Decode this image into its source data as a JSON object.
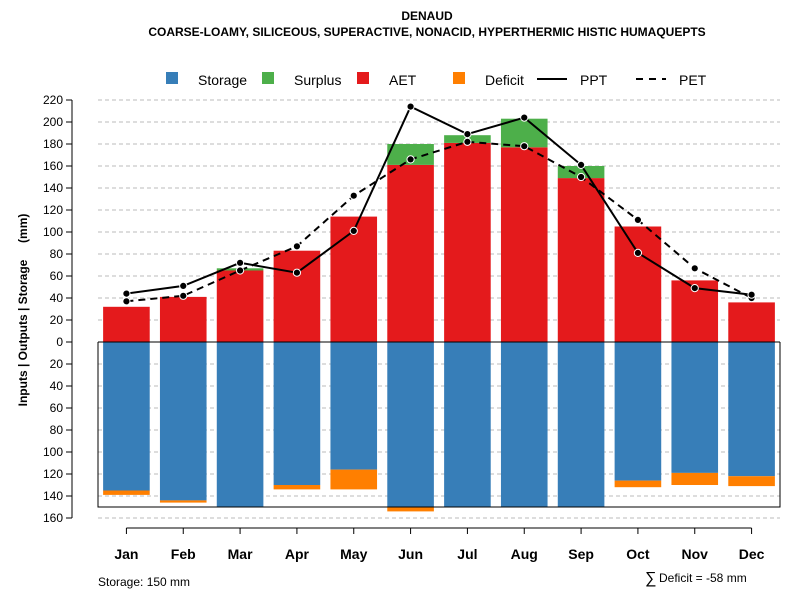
{
  "chart_data": {
    "type": "bar",
    "title": "DENAUD",
    "subtitle": "COARSE-LOAMY, SILICEOUS, SUPERACTIVE, NONACID, HYPERTHERMIC HISTIC HUMAQUEPTS",
    "ylabel": "Inputs | Outputs | Storage     (mm)",
    "xlabel": "",
    "ylim": [
      -160,
      220
    ],
    "yticks": [
      220,
      200,
      180,
      160,
      140,
      120,
      100,
      80,
      60,
      40,
      20,
      0,
      -20,
      -40,
      -60,
      -80,
      -100,
      -120,
      -140,
      -160
    ],
    "grid": true,
    "legend_position": "top",
    "categories": [
      "Jan",
      "Feb",
      "Mar",
      "Apr",
      "May",
      "Jun",
      "Jul",
      "Aug",
      "Sep",
      "Oct",
      "Nov",
      "Dec"
    ],
    "series": [
      {
        "name": "AET",
        "kind": "bar",
        "values": [
          32,
          41,
          65,
          83,
          114,
          161,
          181,
          177,
          149,
          105,
          56,
          36
        ]
      },
      {
        "name": "Surplus",
        "kind": "bar",
        "values": [
          0,
          0,
          2,
          0,
          0,
          19,
          7,
          26,
          11,
          0,
          0,
          0
        ]
      },
      {
        "name": "Storage",
        "kind": "bar",
        "values": [
          -135,
          -144,
          -150,
          -130,
          -116,
          -150,
          -150,
          -150,
          -150,
          -126,
          -119,
          -122
        ]
      },
      {
        "name": "Deficit",
        "kind": "bar",
        "values": [
          -4,
          -2,
          0,
          -4,
          -18,
          -4,
          0,
          0,
          0,
          -6,
          -11,
          -9
        ]
      },
      {
        "name": "PPT",
        "kind": "line",
        "values": [
          44,
          51,
          72,
          63,
          101,
          214,
          189,
          204,
          161,
          81,
          49,
          43
        ]
      },
      {
        "name": "PET",
        "kind": "dashed-line",
        "values": [
          37,
          42,
          65,
          87,
          133,
          166,
          182,
          178,
          150,
          111,
          67,
          40
        ]
      }
    ],
    "storage_capacity": -150,
    "legend": [
      "Storage",
      "Surplus",
      "AET",
      "Deficit",
      "PPT",
      "PET"
    ],
    "colors": {
      "Storage": "#377EB8",
      "Surplus": "#4DAF4A",
      "AET": "#E41A1C",
      "Deficit": "#FF7F00",
      "PPT": "#000000",
      "PET": "#000000"
    },
    "footer_left": "Storage: 150 mm",
    "footer_right_symbol": "∑",
    "footer_right": "Deficit = -58 mm"
  }
}
